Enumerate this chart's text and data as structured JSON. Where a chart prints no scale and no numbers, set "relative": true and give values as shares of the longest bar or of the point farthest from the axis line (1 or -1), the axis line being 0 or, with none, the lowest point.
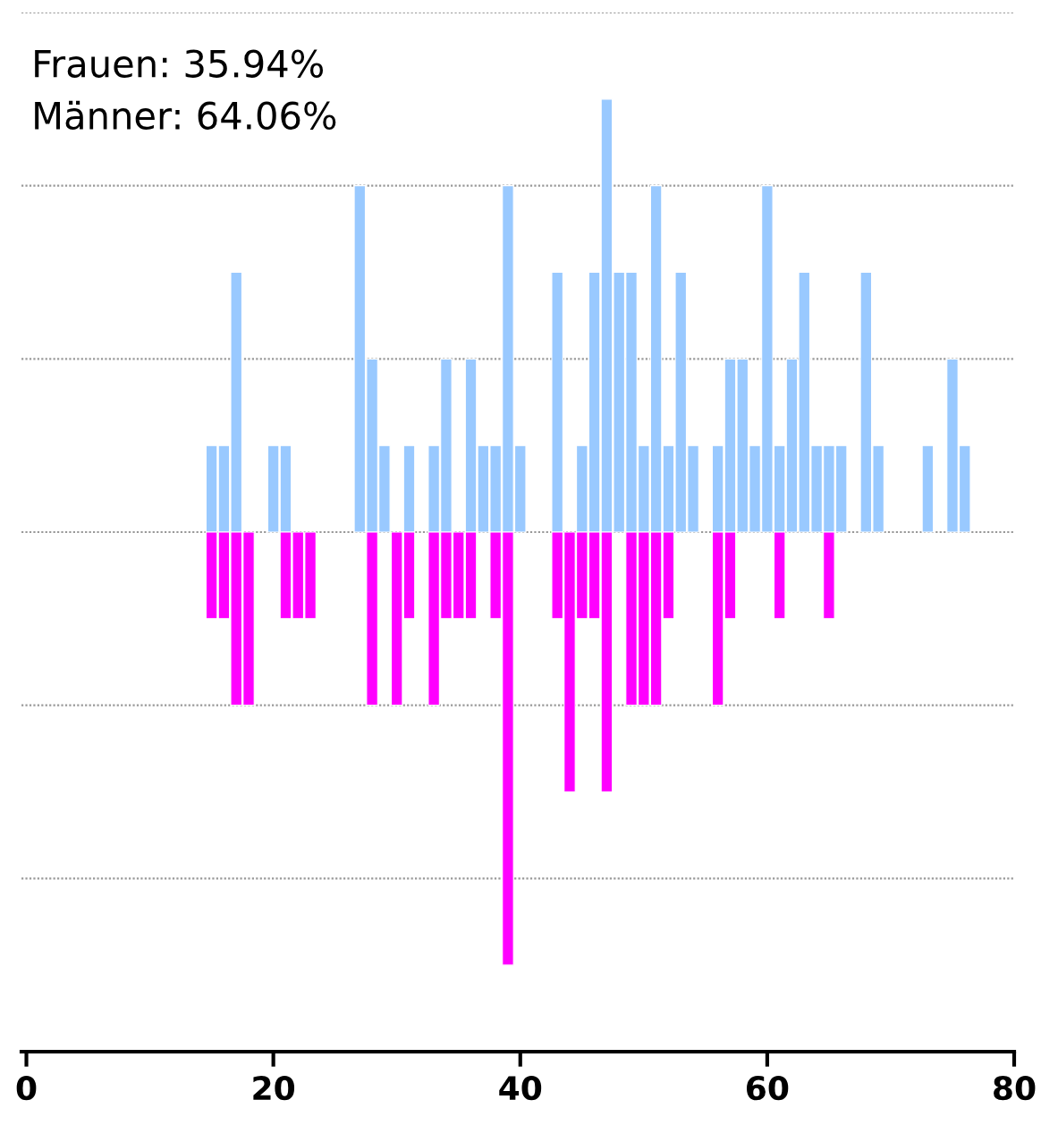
{
  "chart_data": {
    "type": "bar",
    "relative": true,
    "annotations": [
      "Frauen: 35.94%",
      "Männer: 64.06%"
    ],
    "series": [
      {
        "color": "#99c9ff",
        "x": [
          15,
          16,
          17,
          20,
          21,
          27,
          28,
          29,
          31,
          33,
          34,
          36,
          37,
          38,
          39,
          40,
          43,
          45,
          46,
          47,
          48,
          49,
          50,
          51,
          52,
          53,
          54,
          56,
          57,
          58,
          59,
          60,
          61,
          62,
          63,
          64,
          65,
          66,
          68,
          69,
          73,
          75,
          76
        ],
        "values": [
          0.2,
          0.2,
          0.6,
          0.2,
          0.2,
          0.8,
          0.4,
          0.2,
          0.2,
          0.2,
          0.4,
          0.4,
          0.2,
          0.2,
          0.8,
          0.2,
          0.6,
          0.2,
          0.6,
          1.0,
          0.6,
          0.6,
          0.2,
          0.8,
          0.2,
          0.6,
          0.2,
          0.2,
          0.4,
          0.4,
          0.2,
          0.8,
          0.2,
          0.4,
          0.6,
          0.2,
          0.2,
          0.2,
          0.6,
          0.2,
          0.2,
          0.4,
          0.2
        ]
      },
      {
        "color": "#ff00ff",
        "x": [
          15,
          16,
          17,
          18,
          21,
          22,
          23,
          28,
          30,
          31,
          33,
          34,
          35,
          36,
          38,
          39,
          43,
          44,
          45,
          46,
          47,
          49,
          50,
          51,
          52,
          56,
          57,
          61,
          65
        ],
        "values": [
          -0.2,
          -0.2,
          -0.4,
          -0.4,
          -0.2,
          -0.2,
          -0.2,
          -0.4,
          -0.4,
          -0.2,
          -0.4,
          -0.2,
          -0.2,
          -0.2,
          -0.2,
          -1.0,
          -0.2,
          -0.6,
          -0.2,
          -0.2,
          -0.6,
          -0.4,
          -0.4,
          -0.4,
          -0.2,
          -0.4,
          -0.2,
          -0.2,
          -0.2
        ]
      }
    ],
    "xlim": [
      -0.4,
      80
    ],
    "xticks": [
      0,
      20,
      40,
      60,
      80
    ],
    "grid": "y",
    "legend": false,
    "tick_labels": "x"
  }
}
